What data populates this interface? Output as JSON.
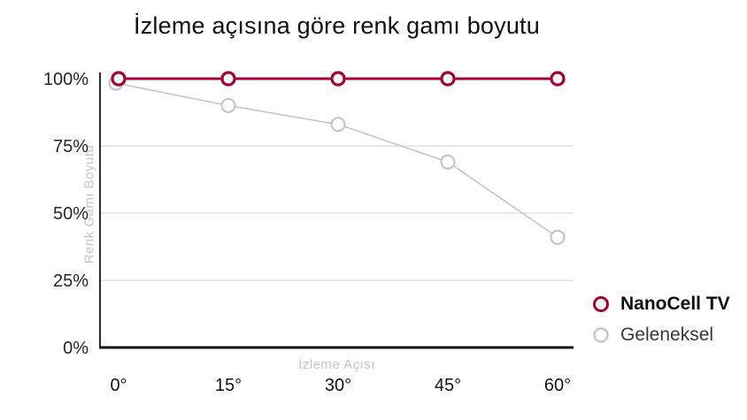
{
  "chart_data": {
    "type": "line",
    "title": "İzleme açısına göre renk gamı boyutu",
    "xlabel": "İzleme Açısı",
    "ylabel": "Renk Gamı Boyutu",
    "categories": [
      "0°",
      "15°",
      "30°",
      "45°",
      "60°"
    ],
    "x_values_degrees": [
      0,
      15,
      30,
      45,
      60
    ],
    "ylim": [
      0,
      100
    ],
    "y_tick_labels": [
      "100%",
      "75%",
      "50%",
      "25%",
      "0%"
    ],
    "y_tick_values": [
      100,
      75,
      50,
      25,
      0
    ],
    "y_gridlines": [
      75,
      50,
      25
    ],
    "grid": "horizontal-only",
    "legend_position": "outside-bottom-right",
    "series": [
      {
        "name": "NanoCell TV",
        "color": "#A50034",
        "marker": "open-circle",
        "values": [
          100,
          100,
          100,
          100,
          100
        ]
      },
      {
        "name": "Geleneksel",
        "color": "#C6C6C6",
        "marker": "open-circle",
        "values": [
          100,
          90,
          83,
          69,
          41
        ]
      }
    ]
  },
  "colors": {
    "background": "#FFFFFF",
    "accent": "#A50034",
    "secondary_series": "#C6C6C6",
    "gridline": "#E3E3E3",
    "y_axis_line": "#2B2B2B",
    "x_axis_line": "#161616",
    "y_tick_label": "#262626",
    "x_tick_label": "#141414",
    "muted_label": "#C5C5C5",
    "title_text": "#111111"
  }
}
